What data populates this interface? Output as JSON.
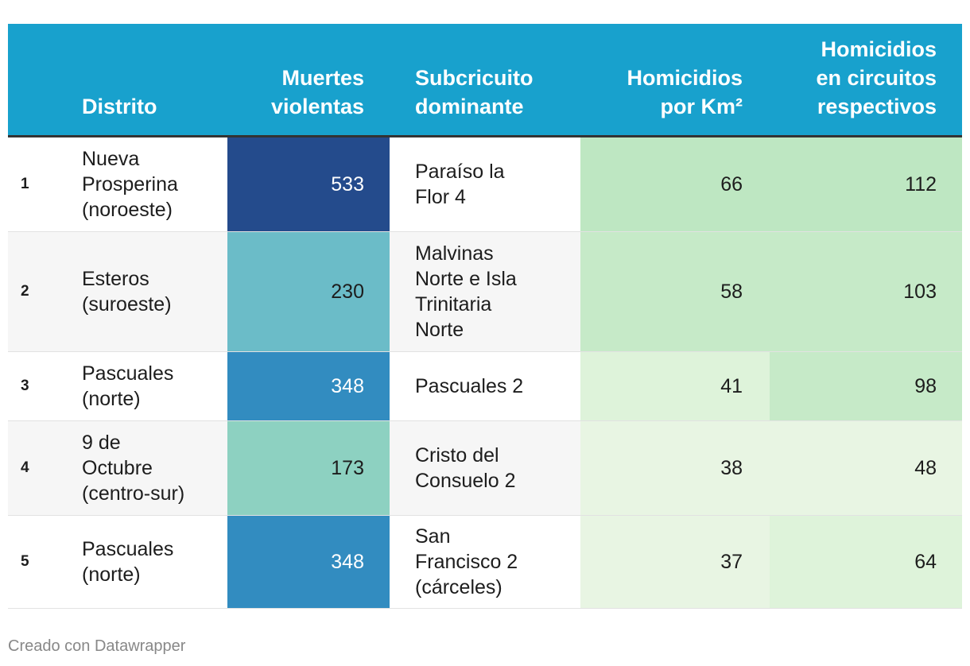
{
  "colors": {
    "header_bg": "#18a1cd",
    "muertes_scale": {
      "533": "#244b8c",
      "348": "#328cc0",
      "230": "#6bbcc8",
      "173": "#8dd1c1"
    },
    "green_scale": [
      "#e8f5e3",
      "#def3da",
      "#d2eed0",
      "#c6eac8",
      "#bee7c2"
    ]
  },
  "header": {
    "num": "",
    "distrito": "Distrito",
    "muertes": [
      "Muertes",
      "violentas"
    ],
    "subcircuito": [
      "Subcricuito",
      "dominante"
    ],
    "homicidios_km": [
      "Homicidios",
      "por Km²"
    ],
    "homicidios_circuitos": [
      "Homicidios",
      "en circuitos",
      "respectivos"
    ]
  },
  "rows": [
    {
      "num": "1",
      "distrito": [
        "Nueva",
        "Prosperina",
        "(noroeste)"
      ],
      "muertes": "533",
      "subcircuito": [
        "Paraíso la",
        "Flor 4"
      ],
      "homicidios_km": "66",
      "homicidios_circuitos": "112"
    },
    {
      "num": "2",
      "distrito": [
        "Esteros",
        "(suroeste)"
      ],
      "muertes": "230",
      "subcircuito": [
        "Malvinas",
        "Norte e Isla",
        "Trinitaria",
        "Norte"
      ],
      "homicidios_km": "58",
      "homicidios_circuitos": "103"
    },
    {
      "num": "3",
      "distrito": [
        "Pascuales",
        "(norte)"
      ],
      "muertes": "348",
      "subcircuito": [
        "Pascuales 2"
      ],
      "homicidios_km": "41",
      "homicidios_circuitos": "98"
    },
    {
      "num": "4",
      "distrito": [
        "9 de",
        "Octubre",
        "(centro-sur)"
      ],
      "muertes": "173",
      "subcircuito": [
        "Cristo del",
        "Consuelo 2"
      ],
      "homicidios_km": "38",
      "homicidios_circuitos": "48"
    },
    {
      "num": "5",
      "distrito": [
        "Pascuales",
        "(norte)"
      ],
      "muertes": "348",
      "subcircuito": [
        "San",
        "Francisco 2",
        "(cárceles)"
      ],
      "homicidios_km": "37",
      "homicidios_circuitos": "64"
    }
  ],
  "chart_data": {
    "type": "table",
    "columns": [
      "",
      "Distrito",
      "Muertes violentas",
      "Subcricuito dominante",
      "Homicidios por Km²",
      "Homicidios en circuitos respectivos"
    ],
    "rows": [
      [
        "1",
        "Nueva Prosperina (noroeste)",
        533,
        "Paraíso la Flor 4",
        66,
        112
      ],
      [
        "2",
        "Esteros (suroeste)",
        230,
        "Malvinas Norte e Isla Trinitaria Norte",
        58,
        103
      ],
      [
        "3",
        "Pascuales (norte)",
        348,
        "Pascuales 2",
        41,
        98
      ],
      [
        "4",
        "9 de Octubre (centro-sur)",
        173,
        "Cristo del Consuelo 2",
        38,
        48
      ],
      [
        "5",
        "Pascuales (norte)",
        348,
        "San Francisco 2 (cárceles)",
        37,
        64
      ]
    ]
  },
  "footer": "Creado con Datawrapper"
}
